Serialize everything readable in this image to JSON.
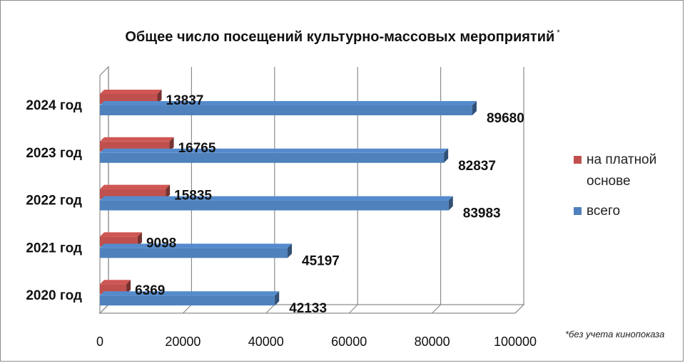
{
  "title": "Общее число посещений культурно-массовых мероприятий",
  "title_mark": "*",
  "footnote": "*без учета кинопоказа",
  "chart_data": {
    "type": "bar",
    "orientation": "horizontal",
    "style": "3d",
    "title": "Общее число посещений культурно-массовых мероприятий",
    "categories": [
      "2020 год",
      "2021 год",
      "2022 год",
      "2023 год",
      "2024 год"
    ],
    "series": [
      {
        "name": "на платной основе",
        "values": [
          6369,
          9098,
          15835,
          16765,
          13837
        ],
        "color": "#c0504d"
      },
      {
        "name": "всего",
        "values": [
          42133,
          45197,
          83983,
          82837,
          89680
        ],
        "color": "#4f81bd"
      }
    ],
    "xlim": [
      0,
      100000
    ],
    "x_ticks": [
      0,
      20000,
      40000,
      60000,
      80000,
      100000
    ],
    "grid": true,
    "legend": "right"
  },
  "legend": {
    "paid_label": "на платной основе",
    "total_label": "всего"
  }
}
